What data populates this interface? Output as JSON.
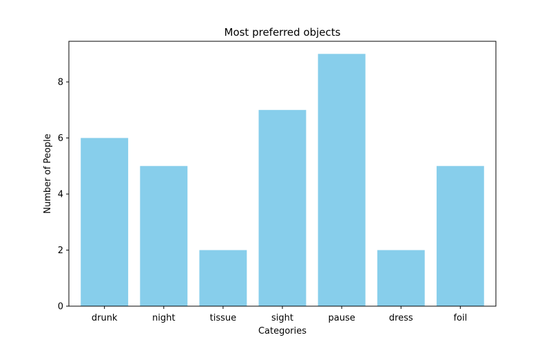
{
  "chart_data": {
    "type": "bar",
    "title": "Most preferred objects",
    "xlabel": "Categories",
    "ylabel": "Number of People",
    "categories": [
      "drunk",
      "night",
      "tissue",
      "sight",
      "pause",
      "dress",
      "foil"
    ],
    "values": [
      6,
      5,
      2,
      7,
      9,
      2,
      5
    ],
    "ylim": [
      0,
      9.45
    ],
    "yticks": [
      0,
      2,
      4,
      6,
      8
    ],
    "bar_color": "#87ceeb",
    "grid": false,
    "legend": "none"
  }
}
